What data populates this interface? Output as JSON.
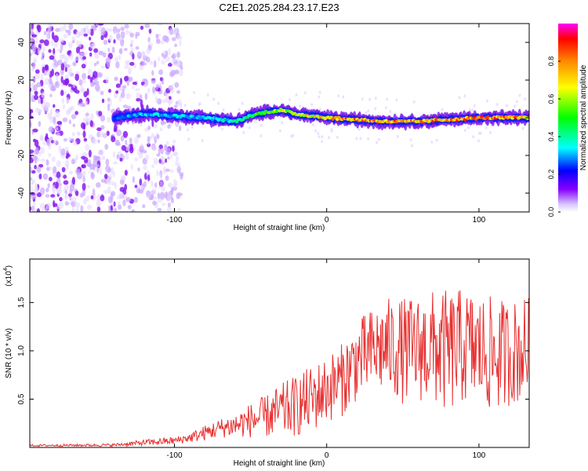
{
  "title": "C2E1.2025.284.23.17.E23",
  "chart_data": [
    {
      "type": "heatmap",
      "name": "spectrogram",
      "xlabel": "Height of straight line (km)",
      "ylabel": "Frequency (Hz)",
      "xlim": [
        -195,
        133
      ],
      "ylim": [
        -50,
        50
      ],
      "xticks": [
        -100,
        0,
        100
      ],
      "xtick_labels": [
        "-100",
        "0",
        "100"
      ],
      "yticks": [
        -40,
        -20,
        0,
        20,
        40
      ],
      "ytick_labels": [
        "-40",
        "-20",
        "0",
        "20",
        "40"
      ],
      "colorbar": {
        "label": "Normalized spectral amplitude",
        "range": [
          0,
          1
        ],
        "ticks": [
          0.0,
          0.2,
          0.4,
          0.6,
          0.8
        ],
        "tick_labels": [
          "0.0",
          "0.2",
          "0.4",
          "0.6",
          "0.8"
        ]
      },
      "noise_region_x": [
        -195,
        -95
      ],
      "signal_track": {
        "x": [
          -140,
          -120,
          -100,
          -80,
          -60,
          -50,
          -40,
          -30,
          -20,
          -10,
          0,
          20,
          40,
          60,
          80,
          100,
          120,
          133
        ],
        "y": [
          0,
          2,
          1,
          0,
          -2,
          1,
          3,
          4,
          2,
          1,
          0,
          -1,
          -2,
          -2,
          -1,
          0,
          0,
          0
        ],
        "amplitude": [
          0.3,
          0.35,
          0.35,
          0.35,
          0.4,
          0.45,
          0.6,
          0.65,
          0.7,
          0.7,
          0.8,
          0.85,
          0.85,
          0.8,
          0.85,
          0.9,
          0.85,
          0.8
        ]
      }
    },
    {
      "type": "line",
      "name": "snr",
      "xlabel": "Height of straight line (km)",
      "ylabel": "SNR (10 * v/v)",
      "yscale_label": "(x10",
      "yscale_exp": "4",
      "xlim": [
        -195,
        133
      ],
      "ylim": [
        0,
        19500
      ],
      "xticks": [
        -100,
        0,
        100
      ],
      "xtick_labels": [
        "-100",
        "0",
        "100"
      ],
      "yticks": [
        5000,
        10000,
        15000
      ],
      "ytick_labels": [
        "0.5",
        "1.0",
        "1.5"
      ],
      "series": [
        {
          "name": "SNR",
          "color": "#e83030",
          "envelope_x": [
            -195,
            -140,
            -120,
            -100,
            -90,
            -80,
            -70,
            -60,
            -50,
            -40,
            -30,
            -20,
            -10,
            0,
            10,
            20,
            30,
            40,
            50,
            60,
            70,
            80,
            90,
            100,
            110,
            120,
            133
          ],
          "envelope_mean": [
            200,
            250,
            500,
            700,
            1000,
            1500,
            2000,
            2300,
            2800,
            3200,
            3800,
            4300,
            5000,
            6000,
            7000,
            9000,
            10000,
            10500,
            10000,
            10200,
            10300,
            9800,
            10500,
            10000,
            9500,
            9800,
            10200
          ],
          "envelope_spread": [
            100,
            150,
            300,
            400,
            500,
            800,
            1000,
            1300,
            1800,
            2200,
            2800,
            3200,
            3500,
            3500,
            3800,
            4200,
            4500,
            5000,
            5500,
            5500,
            6000,
            6500,
            6000,
            6000,
            6000,
            5500,
            5500
          ]
        }
      ]
    }
  ]
}
